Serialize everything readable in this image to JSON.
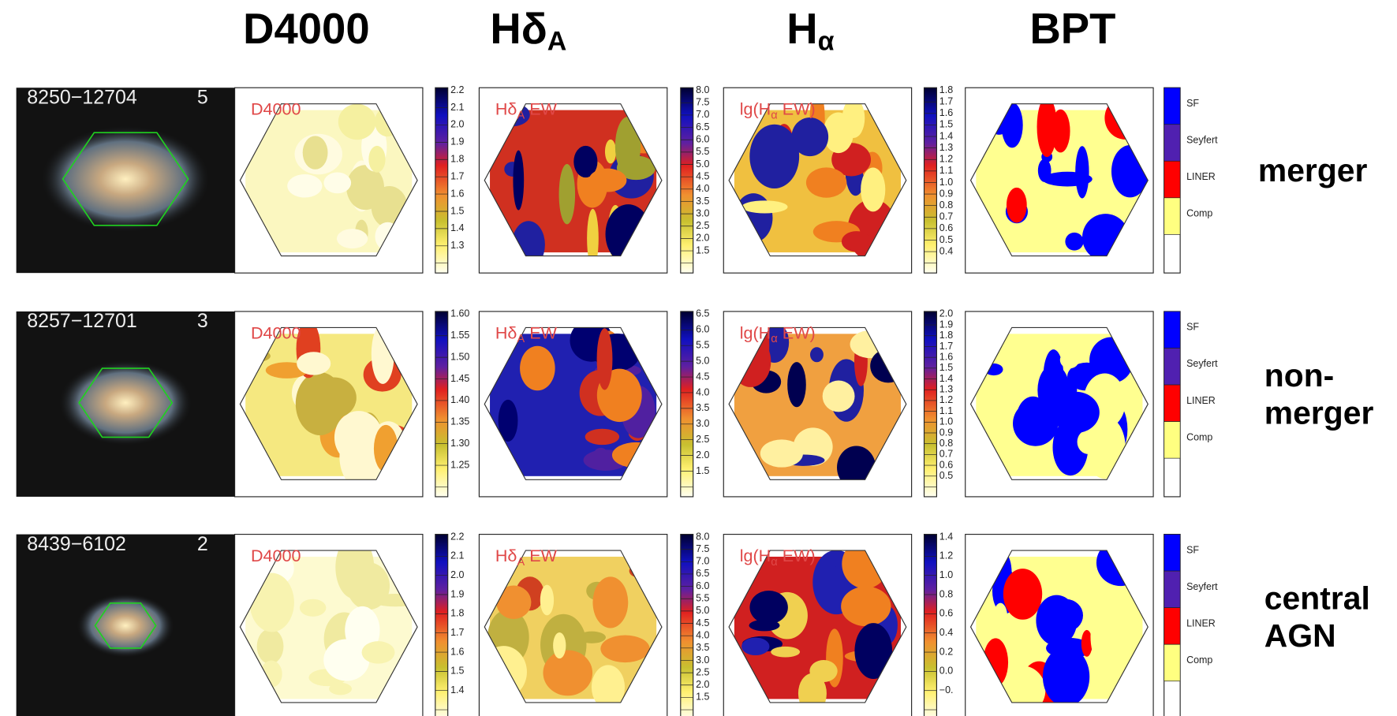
{
  "header": {
    "columns": [
      {
        "text": "D4000"
      },
      {
        "text": "Hδ",
        "sub": "A"
      },
      {
        "text": "H",
        "sub": "α"
      },
      {
        "text": "BPT"
      }
    ]
  },
  "rows": [
    {
      "id": "8250−12704",
      "index": "5",
      "maps": [
        {
          "label": "D4000",
          "ticks": [
            "2.2",
            "2.1",
            "2.0",
            "1.9",
            "1.8",
            "1.7",
            "1.6",
            "1.5",
            "1.4",
            "1.3"
          ]
        },
        {
          "label": "Hδ",
          "label_sub": "A",
          "label_end": " EW",
          "ticks": [
            "8.0",
            "7.5",
            "7.0",
            "6.5",
            "6.0",
            "5.5",
            "5.0",
            "4.5",
            "4.0",
            "3.5",
            "3.0",
            "2.5",
            "2.0",
            "1.5"
          ]
        },
        {
          "label": "lg(H",
          "label_sub": "α",
          "label_end": " EW)",
          "ticks": [
            "1.8",
            "1.7",
            "1.6",
            "1.5",
            "1.4",
            "1.3",
            "1.2",
            "1.1",
            "1.0",
            "0.9",
            "0.8",
            "0.7",
            "0.6",
            "0.5",
            "0.4"
          ]
        }
      ],
      "bpt_legend": [
        "SF",
        "Seyfert",
        "LINER",
        "Comp"
      ],
      "class": [
        "merger"
      ]
    },
    {
      "id": "8257−12701",
      "index": "3",
      "maps": [
        {
          "label": "D4000",
          "ticks": [
            "1.60",
            "1.55",
            "1.50",
            "1.45",
            "1.40",
            "1.35",
            "1.30",
            "1.25"
          ]
        },
        {
          "label": "Hδ",
          "label_sub": "A",
          "label_end": " EW",
          "ticks": [
            "6.5",
            "6.0",
            "5.5",
            "5.0",
            "4.5",
            "4.0",
            "3.5",
            "3.0",
            "2.5",
            "2.0",
            "1.5"
          ]
        },
        {
          "label": "lg(H",
          "label_sub": "α",
          "label_end": " EW)",
          "ticks": [
            "2.0",
            "1.9",
            "1.8",
            "1.7",
            "1.6",
            "1.5",
            "1.4",
            "1.3",
            "1.2",
            "1.1",
            "1.0",
            "0.9",
            "0.8",
            "0.7",
            "0.6",
            "0.5"
          ]
        }
      ],
      "bpt_legend": [
        "SF",
        "Seyfert",
        "LINER",
        "Comp"
      ],
      "class": [
        "non-",
        "merger"
      ]
    },
    {
      "id": "8439−6102",
      "index": "2",
      "maps": [
        {
          "label": "D4000",
          "ticks": [
            "2.2",
            "2.1",
            "2.0",
            "1.9",
            "1.8",
            "1.7",
            "1.6",
            "1.5",
            "1.4"
          ]
        },
        {
          "label": "Hδ",
          "label_sub": "A",
          "label_end": " EW",
          "ticks": [
            "8.0",
            "7.5",
            "7.0",
            "6.5",
            "6.0",
            "5.5",
            "5.0",
            "4.5",
            "4.0",
            "3.5",
            "3.0",
            "2.5",
            "2.0",
            "1.5"
          ]
        },
        {
          "label": "lg(H",
          "label_sub": "α",
          "label_end": " EW)",
          "ticks": [
            "1.4",
            "1.2",
            "1.0",
            "0.8",
            "0.6",
            "0.4",
            "0.2",
            "0.0",
            "−0."
          ]
        }
      ],
      "bpt_legend": [
        "SF",
        "Seyfert",
        "LINER",
        "Comp"
      ],
      "class": [
        "central",
        "AGN"
      ]
    }
  ]
}
